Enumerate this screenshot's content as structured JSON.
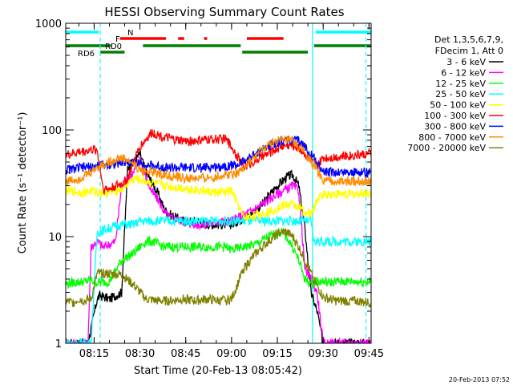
{
  "chart_data": {
    "type": "line",
    "title": "HESSI Observing Summary Count Rates",
    "xlabel": "Start Time (20-Feb-13 08:05:42)",
    "ylabel": "Count Rate (s⁻¹ detector⁻¹)",
    "footer": "20-Feb-2013 07:52",
    "y_scale": "log",
    "ylim": [
      1,
      1000
    ],
    "xlim_minutes": [
      485.7,
      585.7
    ],
    "x_ticks": [
      {
        "label": "08:15",
        "min": 495
      },
      {
        "label": "08:30",
        "min": 510
      },
      {
        "label": "08:45",
        "min": 525
      },
      {
        "label": "09:00",
        "min": 540
      },
      {
        "label": "09:15",
        "min": 555
      },
      {
        "label": "09:30",
        "min": 570
      },
      {
        "label": "09:45",
        "min": 585
      }
    ],
    "y_ticks": [
      {
        "label": "1",
        "v": 1
      },
      {
        "label": "10",
        "v": 10
      },
      {
        "label": "100",
        "v": 100
      },
      {
        "label": "1000",
        "v": 1000
      }
    ],
    "legend": {
      "header": [
        "Det 1,3,5,6,7,9,",
        "FDecim 1, Att 0"
      ],
      "placement": "right"
    },
    "series": [
      {
        "name": "3 - 6 keV",
        "color": "#000000",
        "x": [
          485.7,
          493,
          496,
          497,
          500,
          504,
          506,
          508,
          510,
          512,
          514,
          516,
          518,
          520,
          524,
          528,
          532,
          536,
          540,
          542,
          546,
          550,
          554,
          558,
          560,
          562,
          564,
          566,
          568,
          570,
          572,
          574,
          576,
          585.7
        ],
        "y": [
          1,
          1,
          2.6,
          2.8,
          2.6,
          3,
          45,
          50,
          60,
          40,
          32,
          25,
          18,
          16,
          14,
          14,
          13,
          13,
          13,
          14,
          16,
          20,
          28,
          36,
          38,
          30,
          12,
          3,
          2,
          1,
          1,
          1,
          1,
          1
        ]
      },
      {
        "name": "6 - 12 keV",
        "color": "#ff00ff",
        "x": [
          485.7,
          493,
          494,
          496,
          498,
          502,
          504,
          508,
          510,
          512,
          514,
          516,
          518,
          520,
          524,
          528,
          532,
          536,
          540,
          542,
          546,
          550,
          554,
          558,
          560,
          562,
          563,
          564,
          566,
          568,
          570,
          574,
          585.7
        ],
        "y": [
          1,
          1,
          8,
          9,
          8,
          9,
          30,
          40,
          55,
          35,
          26,
          22,
          17,
          15,
          14,
          13,
          13,
          14,
          14,
          15,
          17,
          20,
          24,
          28,
          30,
          27,
          12,
          5,
          4,
          3,
          1,
          1,
          1
        ]
      },
      {
        "name": "12 - 25 keV",
        "color": "#00ff00",
        "x": [
          485.7,
          488,
          492,
          494,
          496,
          500,
          504,
          506,
          508,
          510,
          512,
          514,
          518,
          522,
          526,
          530,
          534,
          538,
          540,
          544,
          548,
          552,
          556,
          558,
          560,
          562,
          564,
          566,
          568,
          570,
          572,
          574,
          585.7
        ],
        "y": [
          3.6,
          3.7,
          3.8,
          3.9,
          3.7,
          3.8,
          6,
          6.5,
          7,
          8,
          9,
          9,
          8,
          8,
          8,
          8,
          8,
          8,
          7.5,
          8,
          8.5,
          10,
          11,
          10,
          8,
          6,
          4,
          3.6,
          3.8,
          3.8,
          3.7,
          3.8,
          3.8
        ]
      },
      {
        "name": "25 - 50 keV",
        "color": "#00ffff",
        "x": [
          485.7,
          488,
          490,
          492,
          494,
          496,
          500,
          504,
          508,
          510,
          512,
          514,
          520,
          530,
          540,
          550,
          555,
          560,
          565,
          566,
          567,
          568,
          570,
          574,
          580,
          585.7
        ],
        "y": [
          1,
          1,
          1,
          1,
          1,
          11,
          12,
          13,
          13,
          14,
          14,
          14,
          14,
          14,
          14,
          14,
          14,
          14,
          14,
          14,
          9,
          9,
          9,
          9,
          9,
          9
        ]
      },
      {
        "name": "50 - 100 keV",
        "color": "#ffff00",
        "x": [
          485.7,
          490,
          492,
          494,
          496,
          500,
          502,
          504,
          508,
          510,
          514,
          518,
          522,
          526,
          530,
          534,
          538,
          540,
          544,
          548,
          552,
          556,
          558,
          560,
          562,
          564,
          566,
          568,
          570,
          574,
          580,
          585.7
        ],
        "y": [
          27,
          26,
          26,
          27,
          26,
          26,
          27,
          28,
          35,
          34,
          32,
          30,
          29,
          28,
          27,
          26,
          26,
          27,
          15,
          16,
          17,
          19,
          20,
          20,
          19,
          17,
          16,
          22,
          25,
          25,
          25,
          26
        ]
      },
      {
        "name": "100 - 300 keV",
        "color": "#ff0000",
        "x": [
          485.7,
          488,
          490,
          492,
          494,
          496,
          498,
          500,
          502,
          504,
          506,
          508,
          510,
          514,
          518,
          522,
          526,
          530,
          534,
          538,
          540,
          544,
          548,
          552,
          556,
          558,
          560,
          562,
          564,
          566,
          568,
          570,
          574,
          580,
          585.7
        ],
        "y": [
          58,
          60,
          62,
          63,
          65,
          65,
          28,
          28,
          30,
          31,
          35,
          50,
          70,
          95,
          85,
          80,
          78,
          80,
          82,
          82,
          70,
          45,
          52,
          60,
          70,
          72,
          72,
          68,
          60,
          52,
          45,
          55,
          56,
          58,
          60
        ]
      },
      {
        "name": "300 - 800 keV",
        "color": "#0000ff",
        "x": [
          485.7,
          490,
          494,
          498,
          502,
          506,
          510,
          514,
          518,
          522,
          526,
          530,
          534,
          538,
          542,
          546,
          550,
          554,
          558,
          560,
          562,
          564,
          566,
          568,
          570,
          574,
          580,
          585.7
        ],
        "y": [
          42,
          44,
          45,
          47,
          48,
          50,
          48,
          46,
          45,
          44,
          44,
          44,
          45,
          46,
          47,
          55,
          65,
          75,
          80,
          80,
          78,
          70,
          60,
          50,
          40,
          40,
          40,
          40
        ]
      },
      {
        "name": "800 - 7000 keV",
        "color": "#ff8c00",
        "x": [
          485.7,
          490,
          494,
          496,
          500,
          504,
          508,
          510,
          514,
          518,
          522,
          526,
          530,
          534,
          538,
          542,
          546,
          550,
          554,
          558,
          560,
          562,
          564,
          566,
          568,
          570,
          574,
          580,
          585.7
        ],
        "y": [
          33,
          35,
          40,
          45,
          50,
          55,
          48,
          42,
          40,
          38,
          36,
          35,
          35,
          36,
          38,
          40,
          50,
          65,
          78,
          80,
          78,
          70,
          60,
          50,
          42,
          33,
          33,
          33,
          33
        ]
      },
      {
        "name": "7000 - 20000 keV",
        "color": "#808000",
        "x": [
          485.7,
          488,
          490,
          492,
          494,
          496,
          500,
          504,
          508,
          512,
          516,
          520,
          524,
          528,
          532,
          536,
          540,
          544,
          548,
          552,
          556,
          558,
          560,
          562,
          564,
          566,
          568,
          570,
          574,
          580,
          585.7
        ],
        "y": [
          2.5,
          2.4,
          2.6,
          2.5,
          2.6,
          4.5,
          4.5,
          4.4,
          3.5,
          2.6,
          2.5,
          2.5,
          2.6,
          2.5,
          2.6,
          2.5,
          2.6,
          5,
          7,
          9,
          11,
          11,
          10,
          8,
          6,
          4.5,
          3.5,
          2.7,
          2.5,
          2.5,
          2.4
        ]
      }
    ],
    "flags": [
      {
        "name": "N",
        "color": "#00ffff",
        "segments": [
          [
            485.7,
            496.5
          ],
          [
            567.5,
            585.7
          ]
        ]
      },
      {
        "name": "F",
        "color": "#ff0000",
        "segments": [
          [
            503.5,
            518.5
          ],
          [
            522.5,
            524.5
          ],
          [
            531,
            532
          ],
          [
            545,
            557
          ]
        ]
      },
      {
        "name": "RD0",
        "color": "#008000",
        "segments": [
          [
            485.7,
            500.5
          ],
          [
            511,
            543
          ],
          [
            567,
            585.7
          ]
        ]
      },
      {
        "name": "RD6",
        "color": "#008000",
        "segments": [
          [
            497,
            505
          ],
          [
            543.5,
            565
          ]
        ]
      }
    ],
    "vlines": [
      {
        "min": 497,
        "style": "dashed",
        "color": "#00ffff"
      },
      {
        "min": 566.5,
        "style": "solid",
        "color": "#00ffff"
      },
      {
        "min": 584,
        "style": "dashed",
        "color": "#00ffff"
      }
    ]
  }
}
